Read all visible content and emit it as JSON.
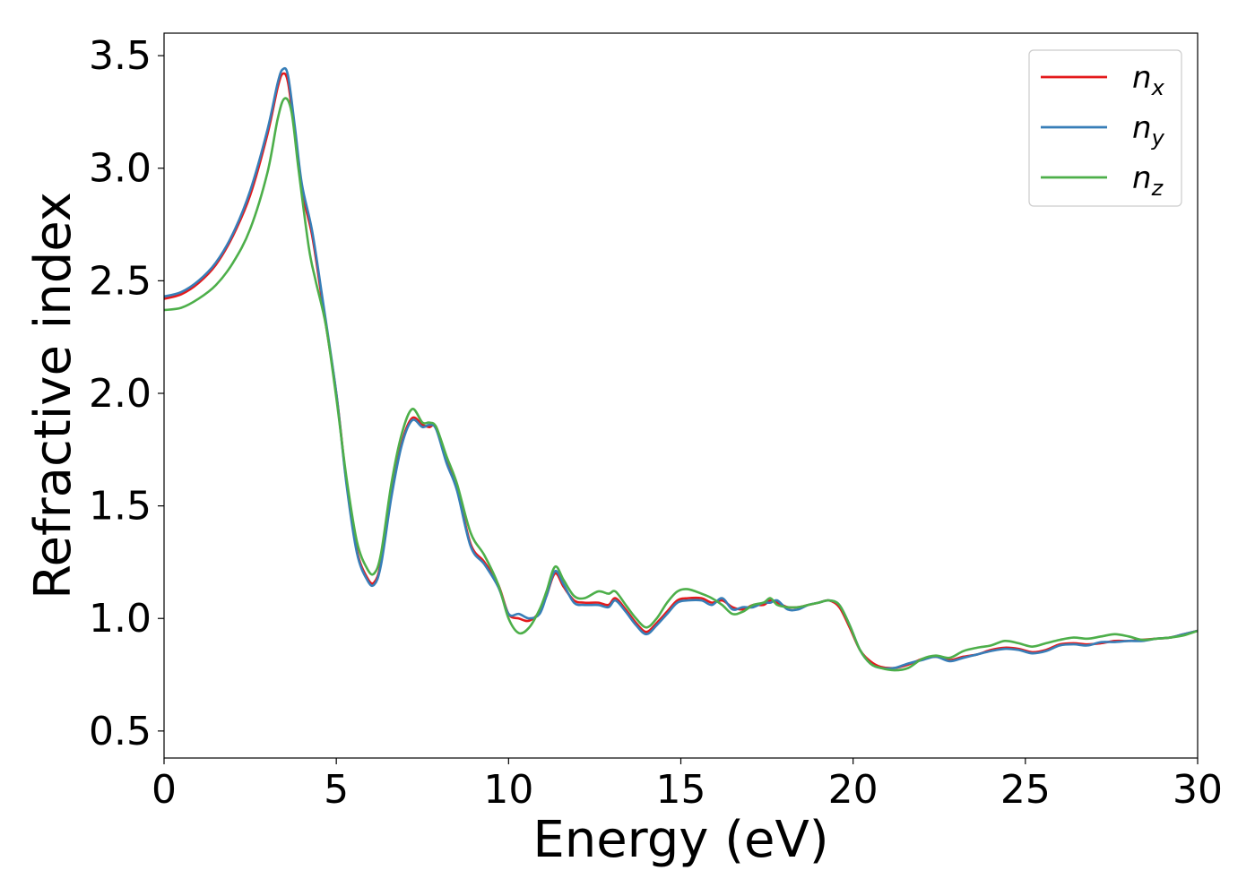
{
  "chart_data": {
    "type": "line",
    "xlabel": "Energy (eV)",
    "ylabel": "Refractive index",
    "xlim": [
      0,
      30
    ],
    "ylim": [
      0.38,
      3.6
    ],
    "xticks": [
      0,
      5,
      10,
      15,
      20,
      25,
      30
    ],
    "xtick_labels": [
      "0",
      "5",
      "10",
      "15",
      "20",
      "25",
      "30"
    ],
    "yticks": [
      0.5,
      1.0,
      1.5,
      2.0,
      2.5,
      3.0,
      3.5
    ],
    "ytick_labels": [
      "0.5",
      "1.0",
      "1.5",
      "2.0",
      "2.5",
      "3.0",
      "3.5"
    ],
    "grid": false,
    "legend_position": "top-right",
    "series": [
      {
        "name": "n",
        "subscript": "x",
        "color": "#e41a1c",
        "x": [
          0,
          0.5,
          1,
          1.5,
          2,
          2.5,
          3,
          3.3,
          3.45,
          3.6,
          3.8,
          4,
          4.3,
          4.6,
          5,
          5.3,
          5.6,
          5.9,
          6.1,
          6.3,
          6.6,
          6.9,
          7.2,
          7.5,
          7.7,
          7.9,
          8.2,
          8.5,
          8.9,
          9.3,
          9.7,
          10.0,
          10.3,
          10.6,
          10.9,
          11.1,
          11.35,
          11.6,
          11.9,
          12.2,
          12.6,
          12.9,
          13.1,
          13.4,
          13.7,
          14.0,
          14.3,
          14.6,
          14.9,
          15.2,
          15.6,
          15.9,
          16.2,
          16.5,
          16.8,
          17.1,
          17.4,
          17.6,
          17.8,
          18.1,
          18.4,
          18.7,
          19.0,
          19.3,
          19.6,
          19.9,
          20.2,
          20.5,
          20.8,
          21.2,
          21.6,
          22.0,
          22.4,
          22.8,
          23.2,
          23.6,
          24.0,
          24.4,
          24.8,
          25.2,
          25.6,
          26.0,
          26.4,
          26.8,
          27.2,
          27.6,
          28.0,
          28.4,
          28.8,
          29.2,
          29.6,
          30.0
        ],
        "y": [
          2.42,
          2.44,
          2.49,
          2.57,
          2.7,
          2.88,
          3.15,
          3.36,
          3.42,
          3.38,
          3.15,
          2.9,
          2.7,
          2.4,
          2.0,
          1.6,
          1.3,
          1.18,
          1.16,
          1.25,
          1.55,
          1.78,
          1.89,
          1.86,
          1.85,
          1.85,
          1.7,
          1.58,
          1.33,
          1.25,
          1.15,
          1.02,
          1.0,
          0.99,
          1.03,
          1.1,
          1.2,
          1.14,
          1.08,
          1.07,
          1.07,
          1.06,
          1.09,
          1.04,
          0.98,
          0.94,
          0.98,
          1.03,
          1.08,
          1.09,
          1.09,
          1.07,
          1.08,
          1.05,
          1.04,
          1.06,
          1.06,
          1.08,
          1.07,
          1.05,
          1.05,
          1.06,
          1.07,
          1.08,
          1.05,
          0.96,
          0.86,
          0.81,
          0.785,
          0.78,
          0.795,
          0.82,
          0.83,
          0.815,
          0.83,
          0.84,
          0.86,
          0.87,
          0.865,
          0.85,
          0.86,
          0.885,
          0.89,
          0.885,
          0.89,
          0.9,
          0.9,
          0.905,
          0.91,
          0.915,
          0.93,
          0.945
        ]
      },
      {
        "name": "n",
        "subscript": "y",
        "color": "#377eb8",
        "x": [
          0,
          0.5,
          1,
          1.5,
          2,
          2.5,
          3,
          3.3,
          3.45,
          3.6,
          3.8,
          4,
          4.3,
          4.6,
          5,
          5.3,
          5.6,
          5.9,
          6.1,
          6.3,
          6.6,
          6.9,
          7.2,
          7.5,
          7.7,
          7.9,
          8.2,
          8.5,
          8.9,
          9.3,
          9.7,
          10.0,
          10.3,
          10.6,
          10.9,
          11.1,
          11.35,
          11.6,
          11.9,
          12.2,
          12.6,
          12.9,
          13.1,
          13.4,
          13.7,
          14.0,
          14.3,
          14.6,
          14.9,
          15.2,
          15.6,
          15.9,
          16.2,
          16.5,
          16.8,
          17.1,
          17.4,
          17.6,
          17.8,
          18.1,
          18.4,
          18.7,
          19.0,
          19.3,
          19.6,
          19.9,
          20.2,
          20.5,
          20.8,
          21.2,
          21.6,
          22.0,
          22.4,
          22.8,
          23.2,
          23.6,
          24.0,
          24.4,
          24.8,
          25.2,
          25.6,
          26.0,
          26.4,
          26.8,
          27.2,
          27.6,
          28.0,
          28.4,
          28.8,
          29.2,
          29.6,
          30.0
        ],
        "y": [
          2.43,
          2.45,
          2.5,
          2.58,
          2.71,
          2.9,
          3.17,
          3.38,
          3.44,
          3.41,
          3.18,
          2.93,
          2.72,
          2.42,
          2.0,
          1.59,
          1.29,
          1.17,
          1.15,
          1.24,
          1.54,
          1.77,
          1.88,
          1.85,
          1.86,
          1.84,
          1.69,
          1.57,
          1.32,
          1.24,
          1.14,
          1.02,
          1.02,
          1.0,
          1.02,
          1.1,
          1.21,
          1.15,
          1.07,
          1.06,
          1.06,
          1.05,
          1.08,
          1.03,
          0.97,
          0.93,
          0.97,
          1.02,
          1.07,
          1.08,
          1.08,
          1.06,
          1.09,
          1.04,
          1.05,
          1.05,
          1.07,
          1.07,
          1.08,
          1.04,
          1.04,
          1.06,
          1.07,
          1.08,
          1.06,
          0.97,
          0.86,
          0.8,
          0.78,
          0.78,
          0.8,
          0.815,
          0.83,
          0.81,
          0.825,
          0.84,
          0.855,
          0.865,
          0.86,
          0.845,
          0.855,
          0.88,
          0.885,
          0.88,
          0.895,
          0.895,
          0.9,
          0.9,
          0.91,
          0.915,
          0.93,
          0.945
        ]
      },
      {
        "name": "n",
        "subscript": "z",
        "color": "#4daf4a",
        "x": [
          0,
          0.5,
          1,
          1.5,
          2,
          2.5,
          3,
          3.3,
          3.5,
          3.7,
          3.9,
          4.2,
          4.4,
          4.7,
          5,
          5.3,
          5.6,
          5.9,
          6.1,
          6.3,
          6.6,
          6.9,
          7.2,
          7.5,
          7.7,
          7.9,
          8.2,
          8.5,
          8.9,
          9.3,
          9.7,
          10.0,
          10.3,
          10.6,
          10.9,
          11.1,
          11.35,
          11.6,
          11.9,
          12.2,
          12.6,
          12.9,
          13.1,
          13.4,
          13.7,
          14.0,
          14.3,
          14.6,
          14.9,
          15.2,
          15.6,
          15.9,
          16.2,
          16.5,
          16.8,
          17.1,
          17.4,
          17.6,
          17.8,
          18.1,
          18.4,
          18.7,
          19.0,
          19.3,
          19.6,
          19.9,
          20.2,
          20.5,
          20.8,
          21.2,
          21.6,
          22.0,
          22.4,
          22.8,
          23.2,
          23.6,
          24.0,
          24.4,
          24.8,
          25.2,
          25.6,
          26.0,
          26.4,
          26.8,
          27.2,
          27.6,
          28.0,
          28.4,
          28.8,
          29.2,
          29.6,
          30.0
        ],
        "y": [
          2.37,
          2.38,
          2.42,
          2.48,
          2.58,
          2.73,
          2.98,
          3.22,
          3.31,
          3.25,
          3.0,
          2.65,
          2.5,
          2.3,
          1.98,
          1.62,
          1.34,
          1.22,
          1.2,
          1.29,
          1.6,
          1.82,
          1.93,
          1.87,
          1.87,
          1.85,
          1.72,
          1.6,
          1.38,
          1.28,
          1.15,
          1.0,
          0.935,
          0.96,
          1.04,
          1.12,
          1.23,
          1.17,
          1.1,
          1.09,
          1.12,
          1.11,
          1.12,
          1.06,
          1.0,
          0.96,
          1.0,
          1.07,
          1.12,
          1.13,
          1.11,
          1.09,
          1.06,
          1.02,
          1.03,
          1.06,
          1.07,
          1.09,
          1.06,
          1.05,
          1.05,
          1.06,
          1.07,
          1.08,
          1.06,
          0.97,
          0.86,
          0.8,
          0.78,
          0.77,
          0.78,
          0.82,
          0.835,
          0.825,
          0.855,
          0.87,
          0.88,
          0.9,
          0.89,
          0.875,
          0.89,
          0.905,
          0.915,
          0.91,
          0.92,
          0.93,
          0.92,
          0.905,
          0.91,
          0.915,
          0.925,
          0.945
        ]
      }
    ]
  }
}
